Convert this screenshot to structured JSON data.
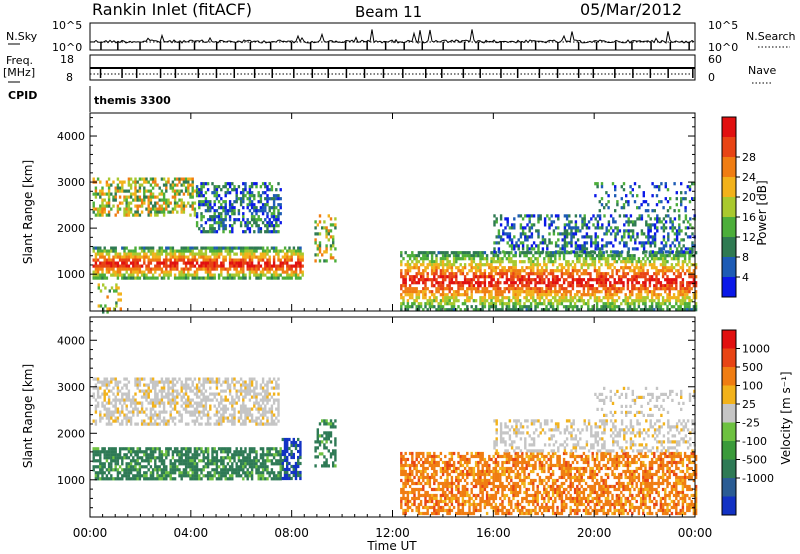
{
  "header": {
    "title": "Rankin Inlet (fitACF)",
    "beam": "Beam 11",
    "date": "05/Mar/2012"
  },
  "aux_panels": {
    "nsky_label": "N.Sky",
    "nsearch_label": "N.Search",
    "nsky_ticks": [
      "10^5",
      "10^0"
    ],
    "nsearch_ticks": [
      "10^5",
      "10^0"
    ],
    "freq_label": "Freq.",
    "freq_unit": "[MHz]",
    "freq_ticks": [
      "18",
      "8"
    ],
    "nave_label": "Nave",
    "nave_ticks": [
      "60",
      "0"
    ],
    "cpid_label": "CPID",
    "cpid_value": "themis 3300"
  },
  "chart_data": [
    {
      "type": "heatmap",
      "name": "power",
      "xlabel": "",
      "ylabel": "Slant Range [km]",
      "ylim": [
        200,
        4500
      ],
      "yticks": [
        1000,
        2000,
        3000,
        4000
      ],
      "colorbar": {
        "label": "Power [dB]",
        "ticks": [
          "4",
          "8",
          "12",
          "16",
          "20",
          "24",
          "28"
        ],
        "colors": [
          "#0a18e8",
          "#1d5bb5",
          "#2f7a52",
          "#4cae3a",
          "#a9c92e",
          "#f2b21b",
          "#f07d12",
          "#e84414",
          "#e11010"
        ]
      }
    },
    {
      "type": "heatmap",
      "name": "velocity",
      "xlabel": "Time UT",
      "ylabel": "Slant Range [km]",
      "ylim": [
        200,
        4500
      ],
      "yticks": [
        1000,
        2000,
        3000,
        4000
      ],
      "xticks": [
        "00:00",
        "04:00",
        "08:00",
        "12:00",
        "16:00",
        "20:00",
        "00:00"
      ],
      "colorbar": {
        "label": "Velocity [m s⁻¹]",
        "ticks": [
          "1000",
          "500",
          "100",
          "25",
          "-25",
          "-100",
          "-500",
          "-1000"
        ],
        "colors": [
          "#1232c4",
          "#2a5c94",
          "#2e7a55",
          "#3a9a3a",
          "#6dc140",
          "#c5c5c5",
          "#f2b21b",
          "#f07d12",
          "#e84414",
          "#e11010"
        ]
      }
    }
  ]
}
